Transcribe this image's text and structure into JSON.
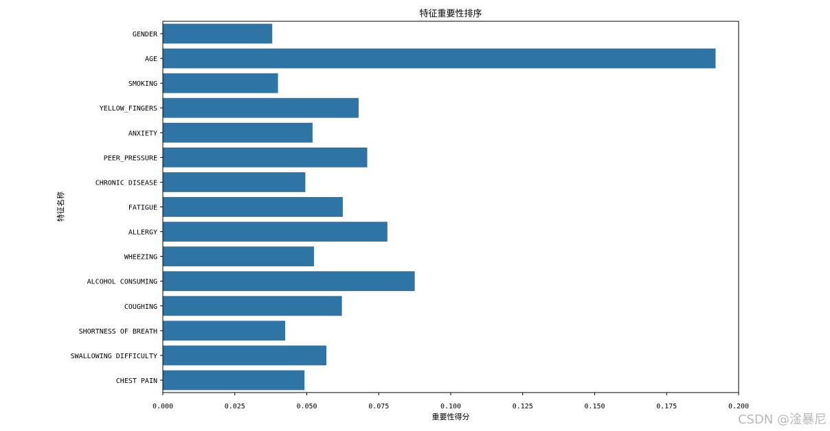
{
  "watermark": "CSDN @淦暴尼",
  "chart_data": {
    "type": "bar",
    "orientation": "horizontal",
    "title": "特征重要性排序",
    "xlabel": "重要性得分",
    "ylabel": "特征名称",
    "bar_color": "#2e75a6",
    "xlim": [
      0,
      0.2
    ],
    "xticks": [
      0.0,
      0.025,
      0.05,
      0.075,
      0.1,
      0.125,
      0.15,
      0.175,
      0.2
    ],
    "xtick_labels": [
      "0.000",
      "0.025",
      "0.050",
      "0.075",
      "0.100",
      "0.125",
      "0.150",
      "0.175",
      "0.200"
    ],
    "grid": false,
    "categories": [
      "GENDER",
      "AGE",
      "SMOKING",
      "YELLOW_FINGERS",
      "ANXIETY",
      "PEER_PRESSURE",
      "CHRONIC DISEASE",
      "FATIGUE ",
      "ALLERGY ",
      "WHEEZING",
      "ALCOHOL CONSUMING",
      "COUGHING",
      "SHORTNESS OF BREATH",
      "SWALLOWING DIFFICULTY",
      "CHEST PAIN"
    ],
    "values": [
      0.038,
      0.192,
      0.04,
      0.068,
      0.052,
      0.071,
      0.0495,
      0.0625,
      0.078,
      0.0525,
      0.0875,
      0.0622,
      0.0425,
      0.0568,
      0.0492
    ]
  }
}
